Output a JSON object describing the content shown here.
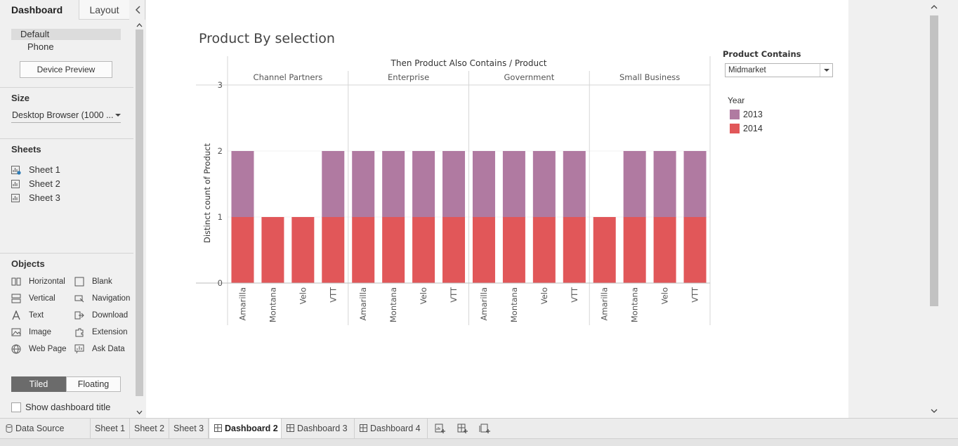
{
  "panel": {
    "tabs": [
      "Dashboard",
      "Layout"
    ],
    "devices": [
      "Default",
      "Phone"
    ],
    "device_preview": "Device Preview",
    "size_title": "Size",
    "size_value": "Desktop Browser (1000 ...",
    "sheets_title": "Sheets",
    "sheets": [
      "Sheet 1",
      "Sheet 2",
      "Sheet 3"
    ],
    "objects_title": "Objects",
    "objects": [
      {
        "label": "Horizontal",
        "icon": "horizontal-icon"
      },
      {
        "label": "Blank",
        "icon": "blank-icon"
      },
      {
        "label": "Vertical",
        "icon": "vertical-icon"
      },
      {
        "label": "Navigation",
        "icon": "navigation-icon"
      },
      {
        "label": "Text",
        "icon": "text-icon"
      },
      {
        "label": "Download",
        "icon": "download-icon"
      },
      {
        "label": "Image",
        "icon": "image-icon"
      },
      {
        "label": "Extension",
        "icon": "extension-icon"
      },
      {
        "label": "Web Page",
        "icon": "web-page-icon"
      },
      {
        "label": "Ask Data",
        "icon": "ask-data-icon"
      }
    ],
    "tiled": "Tiled",
    "floating": "Floating",
    "show_title": "Show dashboard title"
  },
  "dashboard": {
    "title": "Product By selection",
    "filter": {
      "title": "Product Contains",
      "value": "Midmarket"
    },
    "legend": {
      "title": "Year",
      "items": [
        {
          "label": "2013",
          "color": "#b07aa1"
        },
        {
          "label": "2014",
          "color": "#e15759"
        }
      ]
    }
  },
  "chart_data": {
    "type": "bar",
    "stacked": true,
    "title": "Product By selection",
    "column_header": "Then Product Also Contains  /  Product",
    "ylabel": "Distinct count of Product",
    "ylim": [
      0,
      3
    ],
    "yticks": [
      0,
      1,
      2,
      3
    ],
    "panes": [
      "Channel Partners",
      "Enterprise",
      "Government",
      "Small Business"
    ],
    "categories": [
      "Amarilla",
      "Montana",
      "Velo",
      "VTT"
    ],
    "series": [
      {
        "name": "2014",
        "color": "#e15759",
        "values": [
          [
            1,
            1,
            1,
            1
          ],
          [
            1,
            1,
            1,
            1
          ],
          [
            1,
            1,
            1,
            1
          ],
          [
            1,
            1,
            1,
            1
          ]
        ]
      },
      {
        "name": "2013",
        "color": "#b07aa1",
        "values": [
          [
            1,
            0,
            0,
            1
          ],
          [
            1,
            1,
            1,
            1
          ],
          [
            1,
            1,
            1,
            1
          ],
          [
            0,
            1,
            1,
            1
          ]
        ]
      }
    ]
  },
  "bottom_tabs": {
    "data_source": "Data Source",
    "tabs": [
      {
        "label": "Sheet 1",
        "icon": ""
      },
      {
        "label": "Sheet 2",
        "icon": ""
      },
      {
        "label": "Sheet 3",
        "icon": ""
      },
      {
        "label": "Dashboard 2",
        "icon": "dashboard-icon",
        "active": true
      },
      {
        "label": "Dashboard 3",
        "icon": "dashboard-icon"
      },
      {
        "label": "Dashboard 4",
        "icon": "dashboard-icon"
      }
    ]
  }
}
